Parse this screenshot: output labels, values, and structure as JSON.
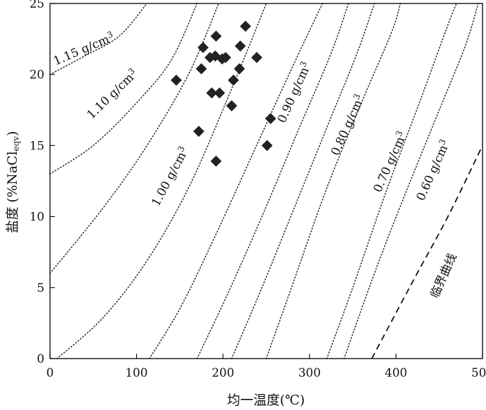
{
  "chart_data": {
    "type": "scatter",
    "xlabel": "均一温度(℃)",
    "ylabel": "盐度 (%NaCl",
    "ylabel_sub": "eqv",
    "ylabel_close": ")",
    "xlim": [
      0,
      500
    ],
    "ylim": [
      0,
      25
    ],
    "xticks": [
      "0",
      "100",
      "200",
      "300",
      "400",
      "500"
    ],
    "yticks": [
      "0",
      "5",
      "10",
      "15",
      "20",
      "25"
    ],
    "grid": false,
    "points": [
      {
        "x": 146,
        "y": 19.6
      },
      {
        "x": 172,
        "y": 16.0
      },
      {
        "x": 175,
        "y": 20.4
      },
      {
        "x": 177,
        "y": 21.9
      },
      {
        "x": 185,
        "y": 21.2
      },
      {
        "x": 187,
        "y": 18.7
      },
      {
        "x": 191,
        "y": 21.3
      },
      {
        "x": 192,
        "y": 22.7
      },
      {
        "x": 192,
        "y": 13.9
      },
      {
        "x": 196,
        "y": 18.7
      },
      {
        "x": 199,
        "y": 21.1
      },
      {
        "x": 203,
        "y": 21.2
      },
      {
        "x": 210,
        "y": 17.8
      },
      {
        "x": 212,
        "y": 19.6
      },
      {
        "x": 219,
        "y": 20.4
      },
      {
        "x": 220,
        "y": 22.0
      },
      {
        "x": 226,
        "y": 23.4
      },
      {
        "x": 239,
        "y": 21.2
      },
      {
        "x": 251,
        "y": 15.0
      },
      {
        "x": 255,
        "y": 16.9
      }
    ],
    "isochores": [
      {
        "label": "1.15 g/cm",
        "sup": "3",
        "values": [
          [
            0,
            20.0
          ],
          [
            40,
            21.3
          ],
          [
            80,
            22.7
          ],
          [
            112,
            25.0
          ]
        ]
      },
      {
        "label": "1.10 g/cm",
        "sup": "3",
        "values": [
          [
            0,
            13.0
          ],
          [
            50,
            15.0
          ],
          [
            100,
            18.0
          ],
          [
            140,
            21.0
          ],
          [
            170,
            25.0
          ]
        ]
      },
      {
        "label": "1.00 g/cm",
        "sup": "3",
        "values": [
          [
            8,
            0.0
          ],
          [
            60,
            2.8
          ],
          [
            110,
            6.7
          ],
          [
            160,
            12.0
          ],
          [
            210,
            19.0
          ],
          [
            250,
            25.0
          ]
        ]
      },
      {
        "label": "0.90 g/cm",
        "sup": "3",
        "values": [
          [
            115,
            0.0
          ],
          [
            150,
            3.5
          ],
          [
            190,
            8.5
          ],
          [
            235,
            14.5
          ],
          [
            280,
            20.5
          ],
          [
            315,
            25.0
          ]
        ]
      },
      {
        "label": "0.80 g/cm",
        "sup": "3",
        "values": [
          [
            170,
            0.0
          ],
          [
            205,
            4.5
          ],
          [
            245,
            10.0
          ],
          [
            290,
            16.5
          ],
          [
            325,
            21.5
          ],
          [
            345,
            25.0
          ]
        ]
      },
      {
        "label": "0.70 g/cm",
        "sup": "3",
        "values": [
          [
            210,
            0.0
          ],
          [
            245,
            5.0
          ],
          [
            285,
            11.0
          ],
          [
            325,
            17.0
          ],
          [
            355,
            21.5
          ],
          [
            375,
            25.0
          ]
        ]
      },
      {
        "label": "0.60 g/cm",
        "sup": "3",
        "values": [
          [
            250,
            0.0
          ],
          [
            285,
            6.0
          ],
          [
            320,
            12.0
          ],
          [
            360,
            18.0
          ],
          [
            395,
            23.0
          ],
          [
            405,
            25.0
          ]
        ]
      },
      {
        "label": "",
        "sup": "",
        "values": [
          [
            0,
            6.0
          ],
          [
            60,
            10.5
          ],
          [
            110,
            14.8
          ],
          [
            160,
            20.0
          ],
          [
            195,
            25.0
          ]
        ]
      },
      {
        "label": "",
        "sup": "",
        "values": [
          [
            320,
            0.0
          ],
          [
            350,
            5.0
          ],
          [
            390,
            12.0
          ],
          [
            430,
            18.5
          ],
          [
            460,
            23.5
          ],
          [
            470,
            25.0
          ]
        ]
      },
      {
        "label": "",
        "sup": "",
        "values": [
          [
            340,
            0.0
          ],
          [
            375,
            6.0
          ],
          [
            410,
            11.5
          ],
          [
            450,
            17.5
          ],
          [
            480,
            22.0
          ],
          [
            495,
            25.0
          ]
        ]
      }
    ],
    "critical_curve": {
      "label": "临界曲线",
      "values": [
        [
          372,
          0.0
        ],
        [
          420,
          5.5
        ],
        [
          460,
          10.0
        ],
        [
          500,
          15.0
        ]
      ]
    }
  }
}
